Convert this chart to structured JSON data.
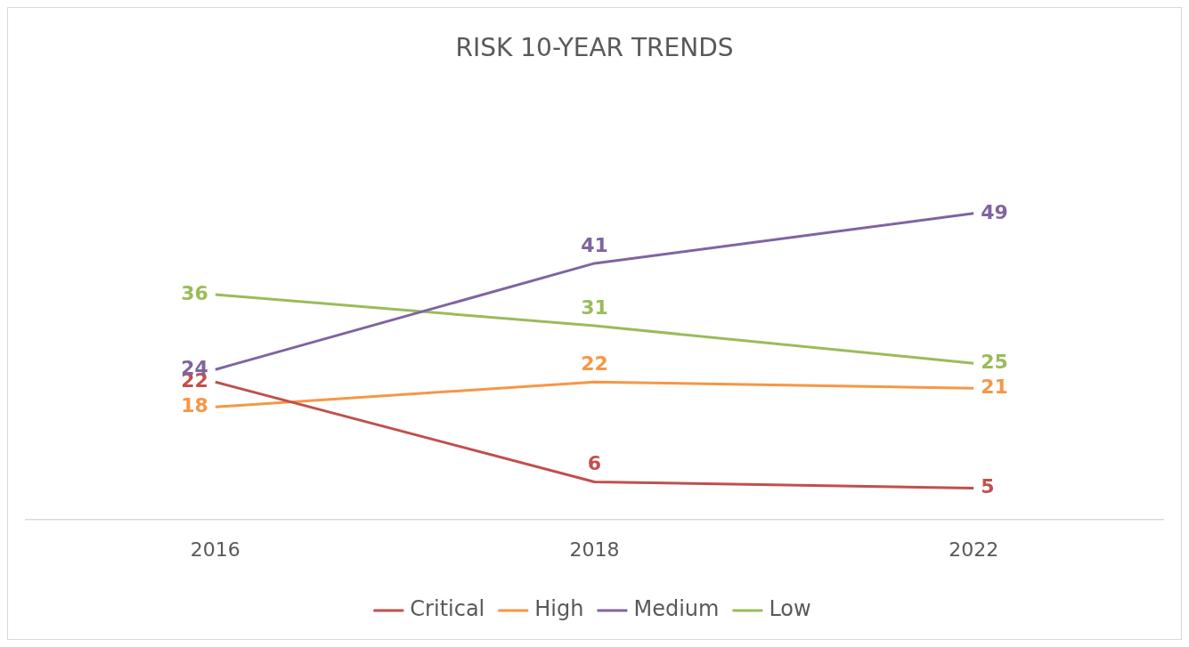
{
  "chart_data": {
    "type": "line",
    "title": "RISK 10-YEAR TRENDS",
    "categories": [
      "2016",
      "2018",
      "2022"
    ],
    "series": [
      {
        "name": "Critical",
        "color": "#c0504d",
        "values": [
          22,
          6,
          5
        ]
      },
      {
        "name": "High",
        "color": "#f79646",
        "values": [
          18,
          22,
          21
        ]
      },
      {
        "name": "Medium",
        "color": "#8064a2",
        "values": [
          24,
          41,
          49
        ]
      },
      {
        "name": "Low",
        "color": "#9bbb59",
        "values": [
          36,
          31,
          25
        ]
      }
    ],
    "data_labels": true,
    "legend": "bottom",
    "grid": false,
    "marker": "none",
    "line_style": "solid"
  }
}
